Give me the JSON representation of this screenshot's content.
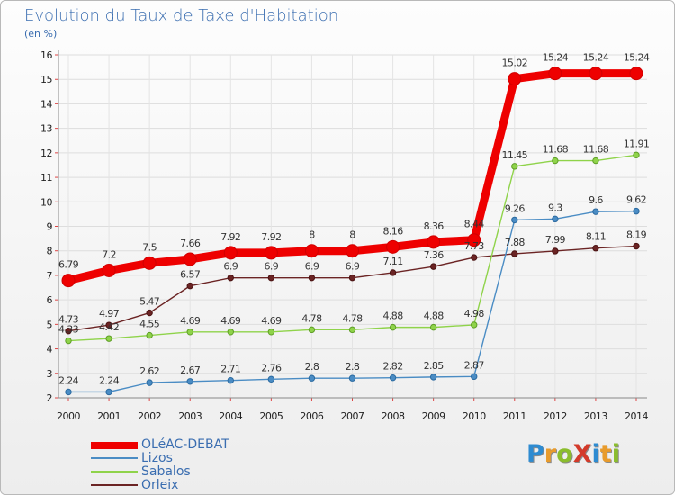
{
  "title": "Evolution du Taux de Taxe d'Habitation",
  "unit_label": "(en %)",
  "logo": {
    "text": "ProXiti",
    "letters": [
      "P",
      "r",
      "o",
      "X",
      "i",
      "t",
      "i"
    ],
    "colors": [
      "#2e8bd1",
      "#e89b2c",
      "#8bbd2d",
      "#d33a2a",
      "#2e8bd1",
      "#e89b2c",
      "#8bbd2d"
    ]
  },
  "chart_data": {
    "type": "line",
    "x": [
      "2000",
      "2001",
      "2002",
      "2003",
      "2004",
      "2005",
      "2006",
      "2007",
      "2008",
      "2009",
      "2010",
      "2011",
      "2012",
      "2013",
      "2014"
    ],
    "ylim": [
      2,
      16
    ],
    "yticks": [
      "2",
      "3",
      "4",
      "5",
      "6",
      "7",
      "8",
      "9",
      "10",
      "11",
      "12",
      "13",
      "14",
      "15",
      "16"
    ],
    "grid": true,
    "legend_position": "bottom-left",
    "series": [
      {
        "name": "OLéAC-DEBAT",
        "color": "#ee0000",
        "values": [
          6.79,
          7.2,
          7.5,
          7.66,
          7.92,
          7.92,
          8,
          8,
          8.16,
          8.36,
          8.44,
          15.02,
          15.24,
          15.24,
          15.24
        ],
        "labels": [
          "6.79",
          "7.2",
          "7.5",
          "7.66",
          "7.92",
          "7.92",
          "8",
          "8",
          "8.16",
          "8.36",
          "8.44",
          "15.02",
          "15.24",
          "15.24",
          "15.24"
        ]
      },
      {
        "name": "Lizos",
        "color": "#4a8cc4",
        "values": [
          2.24,
          2.24,
          2.62,
          2.67,
          2.71,
          2.76,
          2.8,
          2.8,
          2.82,
          2.85,
          2.87,
          9.26,
          9.3,
          9.6,
          9.62
        ],
        "labels": [
          "2.24",
          "2.24",
          "2.62",
          "2.67",
          "2.71",
          "2.76",
          "2.8",
          "2.8",
          "2.82",
          "2.85",
          "2.87",
          "9.26",
          "9.3",
          "9.6",
          "9.62"
        ]
      },
      {
        "name": "Sabalos",
        "color": "#8fd34a",
        "values": [
          4.33,
          4.42,
          4.55,
          4.69,
          4.69,
          4.69,
          4.78,
          4.78,
          4.88,
          4.88,
          4.98,
          11.45,
          11.68,
          11.68,
          11.91
        ],
        "labels": [
          "4.33",
          "4.42",
          "4.55",
          "4.69",
          "4.69",
          "4.69",
          "4.78",
          "4.78",
          "4.88",
          "4.88",
          "4.98",
          "11.45",
          "11.68",
          "11.68",
          "11.91"
        ]
      },
      {
        "name": "Orleix",
        "color": "#6b2424",
        "values": [
          4.73,
          4.97,
          5.47,
          6.57,
          6.9,
          6.9,
          6.9,
          6.9,
          7.11,
          7.36,
          7.73,
          7.88,
          7.99,
          8.11,
          8.19
        ],
        "labels": [
          "4.73",
          "4.97",
          "5.47",
          "6.57",
          "6.9",
          "6.9",
          "6.9",
          "6.9",
          "7.11",
          "7.36",
          "7.73",
          "7.88",
          "7.99",
          "8.11",
          "8.19"
        ]
      }
    ]
  }
}
